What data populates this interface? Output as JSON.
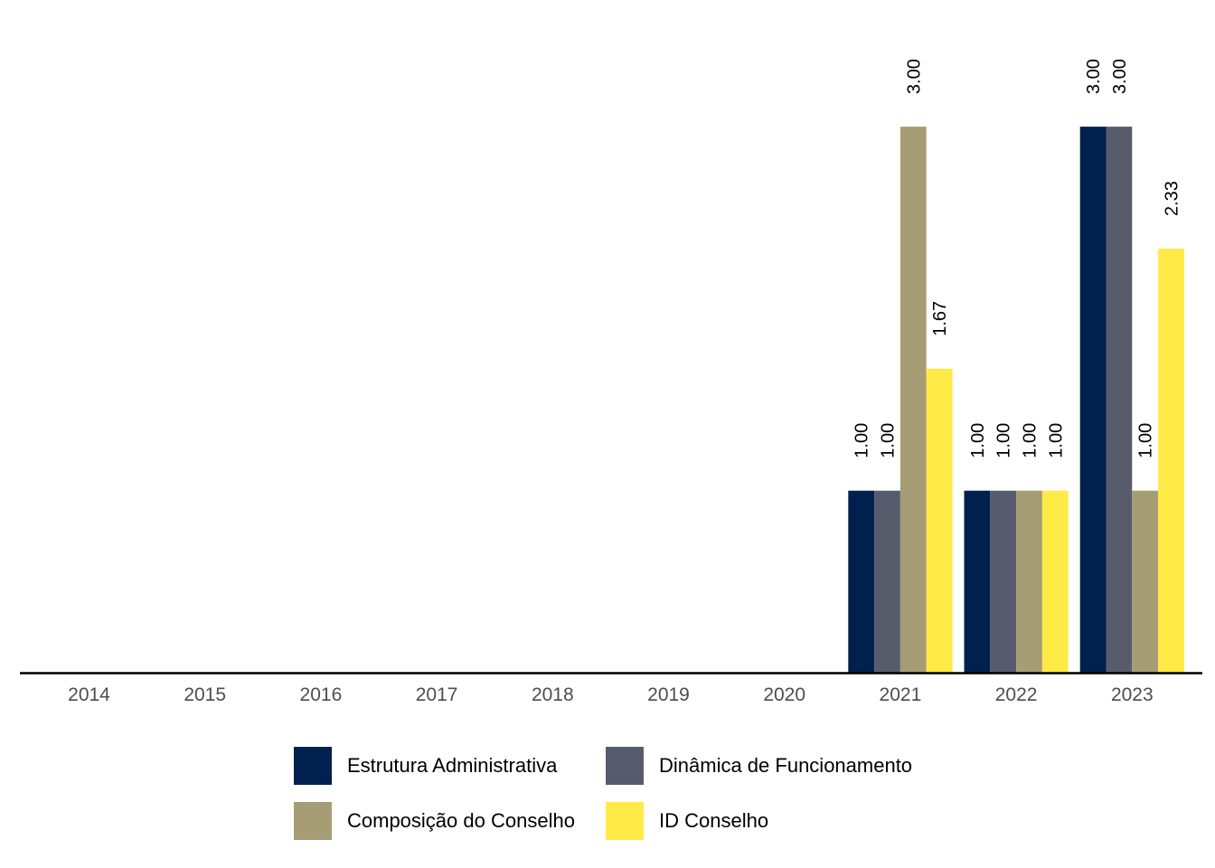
{
  "chart_data": {
    "type": "bar",
    "categories": [
      "2014",
      "2015",
      "2016",
      "2017",
      "2018",
      "2019",
      "2020",
      "2021",
      "2022",
      "2023"
    ],
    "series": [
      {
        "name": "Estrutura Administrativa",
        "color": "#00204D",
        "values": [
          null,
          null,
          null,
          null,
          null,
          null,
          null,
          1.0,
          1.0,
          3.0
        ]
      },
      {
        "name": "Dinâmica de Funcionamento",
        "color": "#575C6D",
        "values": [
          null,
          null,
          null,
          null,
          null,
          null,
          null,
          1.0,
          1.0,
          3.0
        ]
      },
      {
        "name": "Composição do Conselho",
        "color": "#A69D75",
        "values": [
          null,
          null,
          null,
          null,
          null,
          null,
          null,
          3.0,
          1.0,
          1.0
        ]
      },
      {
        "name": "ID Conselho",
        "color": "#FFEA46",
        "values": [
          null,
          null,
          null,
          null,
          null,
          null,
          null,
          1.67,
          1.0,
          2.33
        ]
      }
    ],
    "data_labels": {
      "2021": [
        "1.00",
        "1.00",
        "3.00",
        "1.67"
      ],
      "2022": [
        "1.00",
        "1.00",
        "1.00",
        "1.00"
      ],
      "2023": [
        "3.00",
        "3.00",
        "1.00",
        "2.33"
      ]
    },
    "ylim": [
      0,
      3
    ],
    "grid": false,
    "legend_position": "bottom"
  }
}
